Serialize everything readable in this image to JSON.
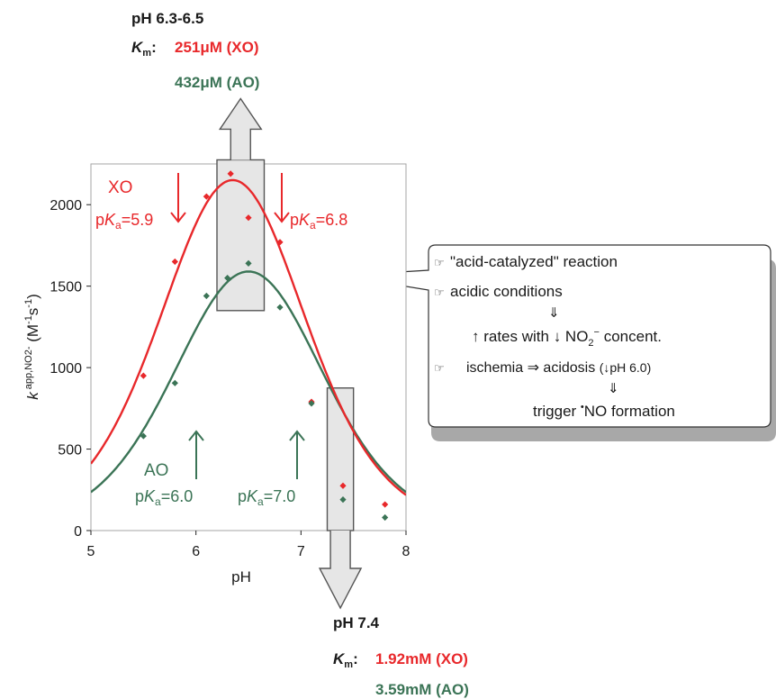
{
  "top_annotation": {
    "ph_range": "pH 6.3-6.5",
    "km_symbol": "K",
    "km_subscript": "m",
    "km_colon": ":",
    "xo_value": "251μM (XO)",
    "ao_value": "432μM (AO)"
  },
  "bottom_annotation": {
    "ph": "pH 7.4",
    "km_symbol": "K",
    "km_subscript": "m",
    "km_colon": ":",
    "xo_value": "1.92mM (XO)",
    "ao_value": "3.59mM (AO)"
  },
  "pka_labels": {
    "xo_name": "XO",
    "xo_pka1": {
      "p": "p",
      "k": "K",
      "sub": "a",
      "val": "=5.9"
    },
    "xo_pka2": {
      "p": "p",
      "k": "K",
      "sub": "a",
      "val": "=6.8"
    },
    "ao_name": "AO",
    "ao_pka1": {
      "p": "p",
      "k": "K",
      "sub": "a",
      "val": "=6.0"
    },
    "ao_pka2": {
      "p": "p",
      "k": "K",
      "sub": "a",
      "val": "=7.0"
    }
  },
  "callout": {
    "bullet_icon": "pointing-hand-icon",
    "line1": "\"acid-catalyzed\" reaction",
    "line2": "acidic conditions",
    "arrow_glyph": "⇓",
    "line3_a": "↑ rates  with ↓ NO",
    "line3_sub": "2",
    "line3_sup": "−",
    "line3_b": " concent.",
    "line4_a": "ischemia ⇒ acidosis  ",
    "line4_b": "(↓pH 6.0)",
    "line5_dot": "•",
    "line5": "NO formation",
    "line5_prefix": "trigger "
  },
  "colors": {
    "xo": "#e8282b",
    "ao": "#3b7456",
    "frame": "#a6a6a6",
    "box_fill": "#e6e6e6",
    "box_stroke": "#555555"
  },
  "chart_data": {
    "type": "scatter",
    "xlabel": "pH",
    "ylabel": {
      "k": "k",
      "sup": " app,NO2-",
      "unit": " (M",
      "unit_sup1": "-1",
      "unit_mid": "s",
      "unit_sup2": "-1",
      "unit_end": ")"
    },
    "xlim": [
      5,
      8
    ],
    "ylim": [
      0,
      2250
    ],
    "x_ticks": [
      5,
      6,
      7,
      8
    ],
    "y_ticks": [
      0,
      500,
      1000,
      1500,
      2000
    ],
    "grid": false,
    "series": [
      {
        "name": "XO",
        "color": "#e8282b",
        "points": [
          [
            5.5,
            950
          ],
          [
            5.8,
            1650
          ],
          [
            6.1,
            2050
          ],
          [
            6.33,
            2190
          ],
          [
            6.5,
            1920
          ],
          [
            6.8,
            1770
          ],
          [
            7.1,
            790
          ],
          [
            7.4,
            275
          ],
          [
            7.8,
            160
          ]
        ],
        "fit": {
          "pka1": 5.9,
          "pka2": 6.8,
          "peak": 2150,
          "peak_x": 6.33
        }
      },
      {
        "name": "AO",
        "color": "#3b7456",
        "points": [
          [
            5.5,
            580
          ],
          [
            5.8,
            905
          ],
          [
            6.1,
            1440
          ],
          [
            6.3,
            1550
          ],
          [
            6.5,
            1640
          ],
          [
            6.8,
            1370
          ],
          [
            7.1,
            780
          ],
          [
            7.4,
            190
          ],
          [
            7.8,
            80
          ]
        ],
        "fit": {
          "pka1": 6.0,
          "pka2": 7.0,
          "peak": 1590,
          "peak_x": 6.5
        }
      }
    ],
    "highlight_regions": [
      {
        "x_range": [
          6.2,
          6.65
        ],
        "y_range": [
          1350,
          2275
        ],
        "arrow": "up"
      },
      {
        "x_range": [
          7.25,
          7.5
        ],
        "y_range": [
          0,
          875
        ],
        "arrow": "down"
      }
    ]
  }
}
